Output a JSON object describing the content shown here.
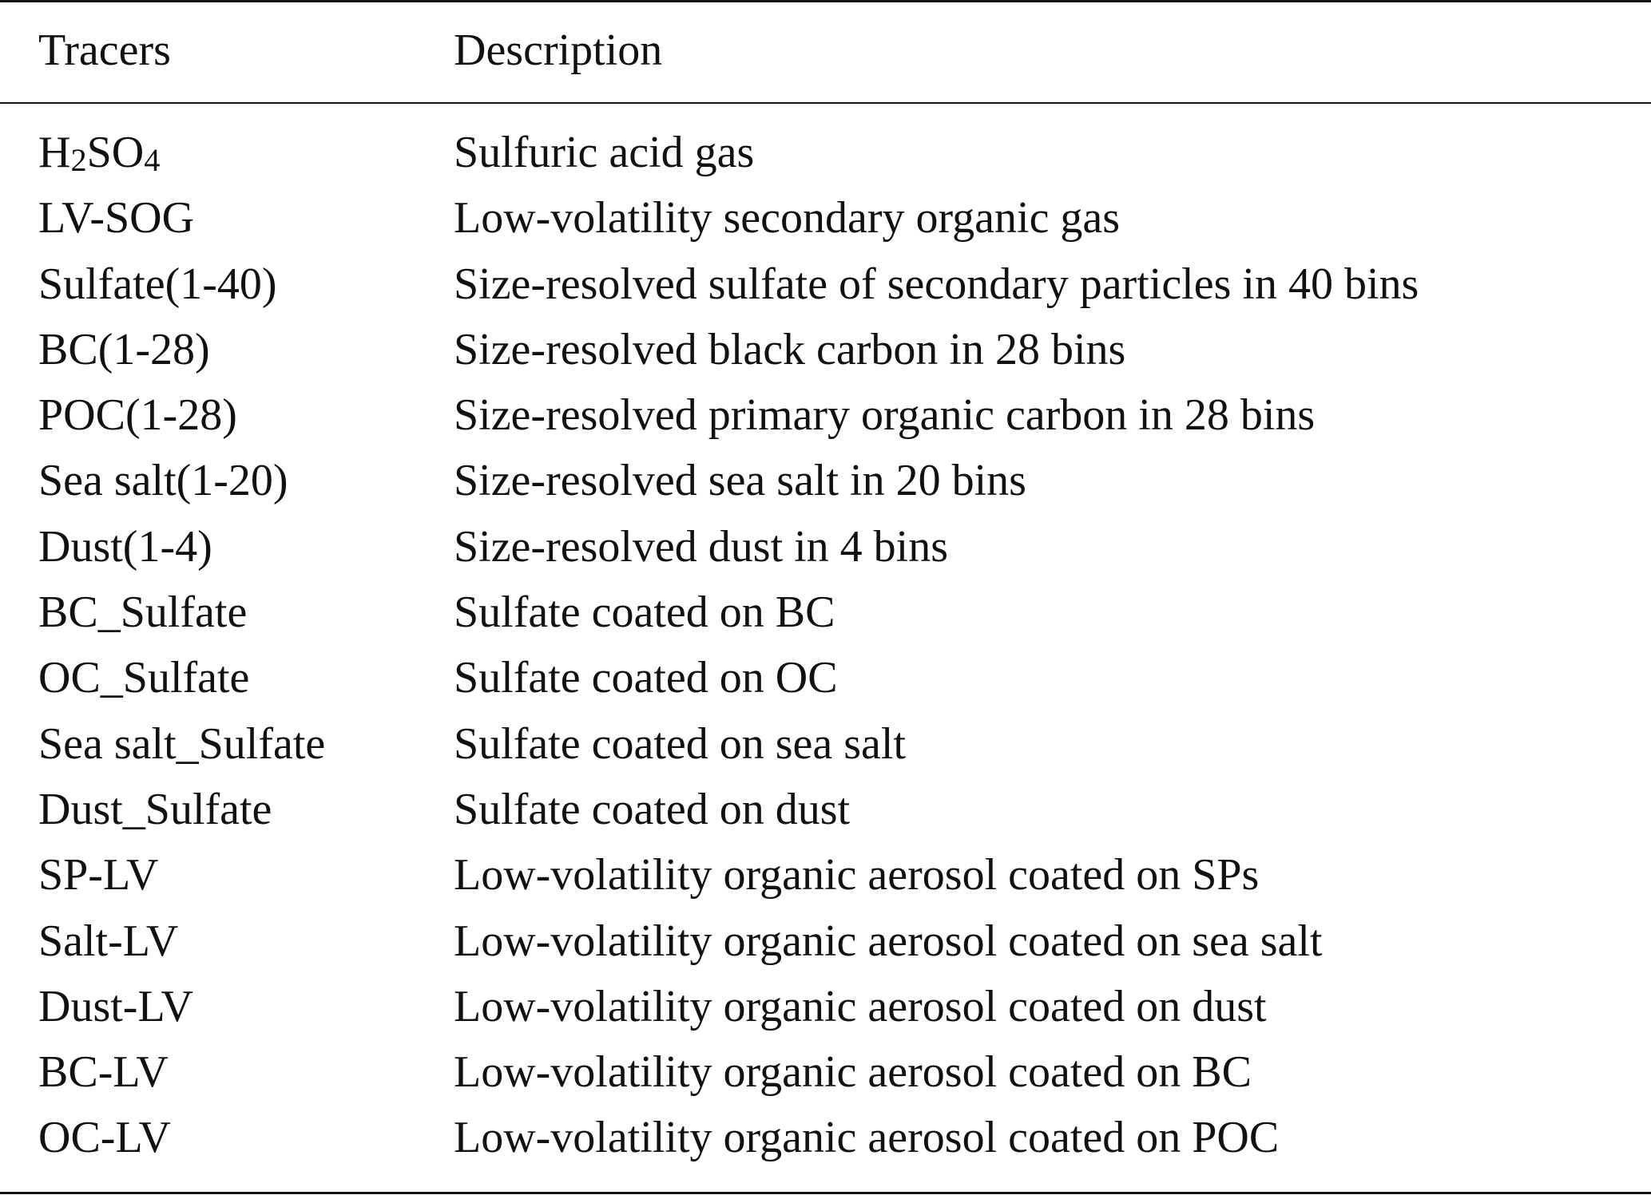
{
  "header": {
    "tracers": "Tracers",
    "description": "Description"
  },
  "rows": [
    {
      "tracer": "H2SO4",
      "description": "Sulfuric acid gas"
    },
    {
      "tracer": "LV-SOG",
      "description": "Low-volatility secondary organic gas"
    },
    {
      "tracer": "Sulfate(1-40)",
      "description": "Size-resolved sulfate of secondary particles in 40 bins"
    },
    {
      "tracer": "BC(1-28)",
      "description": "Size-resolved black carbon in 28 bins"
    },
    {
      "tracer": "POC(1-28)",
      "description": "Size-resolved primary organic carbon in 28 bins"
    },
    {
      "tracer": "Sea salt(1-20)",
      "description": "Size-resolved sea salt in 20 bins"
    },
    {
      "tracer": "Dust(1-4)",
      "description": "Size-resolved dust in 4 bins"
    },
    {
      "tracer": "BC_Sulfate",
      "description": "Sulfate coated on BC"
    },
    {
      "tracer": "OC_Sulfate",
      "description": "Sulfate coated on OC"
    },
    {
      "tracer": "Sea salt_Sulfate",
      "description": "Sulfate coated on sea salt"
    },
    {
      "tracer": "Dust_Sulfate",
      "description": "Sulfate coated on dust"
    },
    {
      "tracer": "SP-LV",
      "description": "Low-volatility organic aerosol coated on SPs"
    },
    {
      "tracer": "Salt-LV",
      "description": "Low-volatility organic aerosol coated on sea salt"
    },
    {
      "tracer": "Dust-LV",
      "description": "Low-volatility organic aerosol coated on dust"
    },
    {
      "tracer": "BC-LV",
      "description": "Low-volatility organic aerosol coated on BC"
    },
    {
      "tracer": "OC-LV",
      "description": "Low-volatility organic aerosol coated on POC"
    }
  ]
}
